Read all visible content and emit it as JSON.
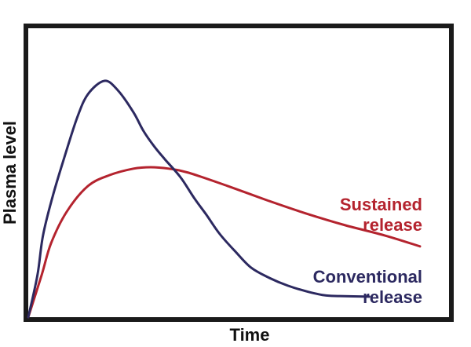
{
  "chart_data": {
    "type": "line",
    "xlabel": "Time",
    "ylabel": "Plasma level",
    "x_range": [
      0,
      10
    ],
    "y_range": [
      0,
      1
    ],
    "grid": false,
    "tick_labels": "none",
    "legend_position": "inline-right",
    "axis_color": "#1a1a1a",
    "background_color": "#ffffff",
    "series": [
      {
        "name": "Sustained release",
        "label_lines": [
          "Sustained",
          "release"
        ],
        "color": "#b4232e",
        "points": [
          [
            0.0,
            0.0
          ],
          [
            0.32,
            0.147
          ],
          [
            0.54,
            0.255
          ],
          [
            0.91,
            0.364
          ],
          [
            1.42,
            0.454
          ],
          [
            1.94,
            0.492
          ],
          [
            2.5,
            0.514
          ],
          [
            2.91,
            0.519
          ],
          [
            3.34,
            0.514
          ],
          [
            3.81,
            0.5
          ],
          [
            4.74,
            0.454
          ],
          [
            5.67,
            0.405
          ],
          [
            6.6,
            0.359
          ],
          [
            7.54,
            0.318
          ],
          [
            8.47,
            0.283
          ],
          [
            9.31,
            0.245
          ]
        ]
      },
      {
        "name": "Conventional release",
        "label_lines": [
          "Conventional",
          "release"
        ],
        "color": "#2c2960",
        "points": [
          [
            0.0,
            0.0
          ],
          [
            0.22,
            0.147
          ],
          [
            0.35,
            0.283
          ],
          [
            0.58,
            0.418
          ],
          [
            0.86,
            0.554
          ],
          [
            1.16,
            0.69
          ],
          [
            1.42,
            0.772
          ],
          [
            1.81,
            0.818
          ],
          [
            2.13,
            0.785
          ],
          [
            2.5,
            0.709
          ],
          [
            2.74,
            0.644
          ],
          [
            3.0,
            0.59
          ],
          [
            3.25,
            0.546
          ],
          [
            3.62,
            0.484
          ],
          [
            3.94,
            0.413
          ],
          [
            4.24,
            0.353
          ],
          [
            4.55,
            0.288
          ],
          [
            4.93,
            0.226
          ],
          [
            5.3,
            0.171
          ],
          [
            5.73,
            0.136
          ],
          [
            6.17,
            0.109
          ],
          [
            6.6,
            0.09
          ],
          [
            7.03,
            0.076
          ],
          [
            7.41,
            0.073
          ],
          [
            8.1,
            0.071
          ]
        ]
      }
    ]
  }
}
